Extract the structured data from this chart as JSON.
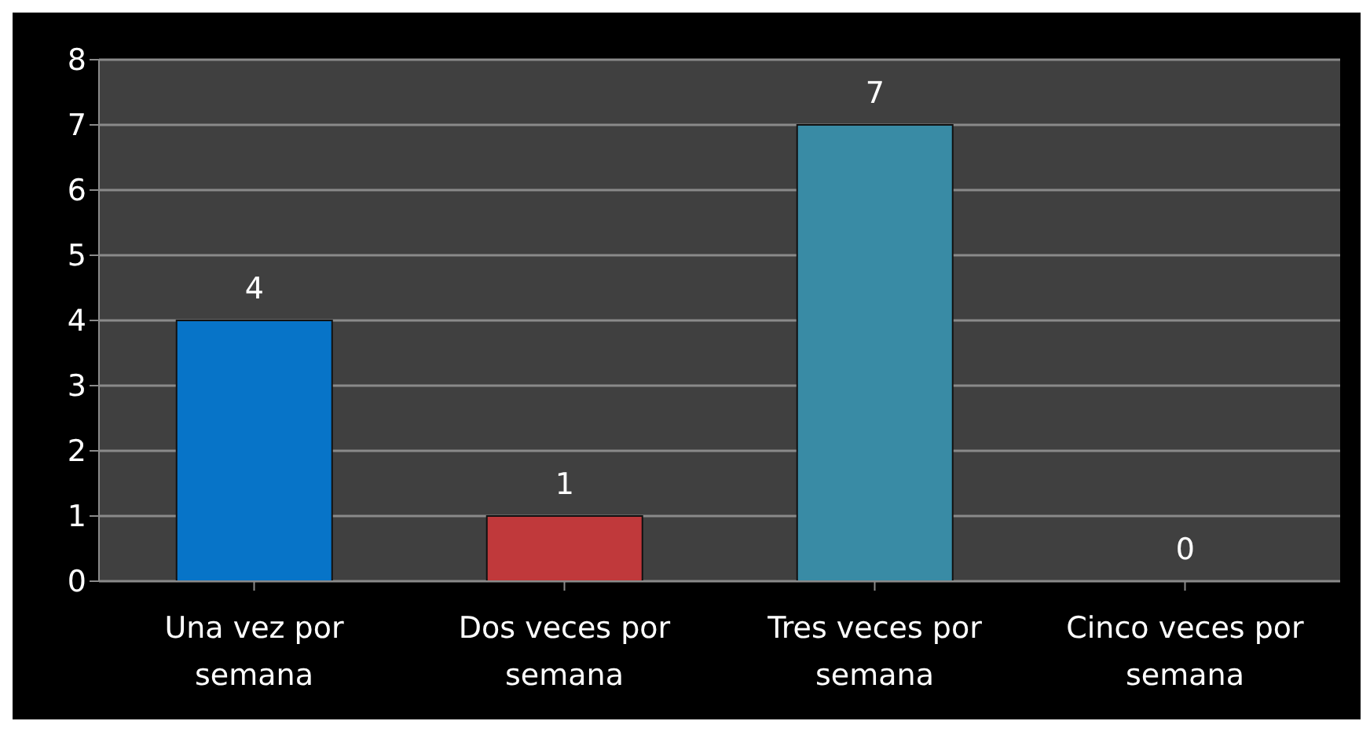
{
  "chart_data": {
    "type": "bar",
    "categories": [
      "Una vez por semana",
      "Dos veces por semana",
      "Tres veces por semana",
      "Cinco veces por semana"
    ],
    "values": [
      4,
      1,
      7,
      0
    ],
    "colors": [
      "#0774c8",
      "#c0393b",
      "#398ba5",
      "#398ba5"
    ],
    "ylim": [
      0,
      8
    ],
    "yticks": [
      0,
      1,
      2,
      3,
      4,
      5,
      6,
      7,
      8
    ],
    "grid": "y",
    "data_labels": true
  }
}
